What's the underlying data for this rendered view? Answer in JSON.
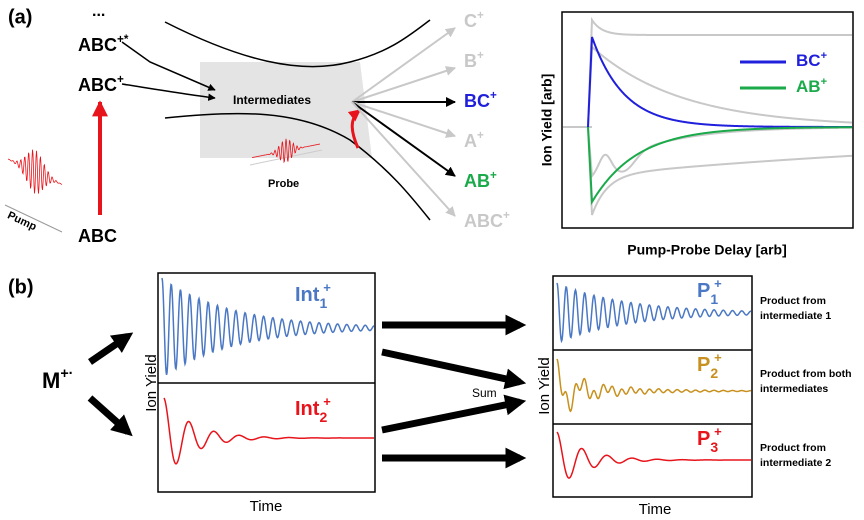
{
  "panel_a": {
    "label": "(a)",
    "ellipsis": "...",
    "excited": {
      "text": "ABC",
      "charge": "+*"
    },
    "ion": {
      "text": "ABC",
      "charge": "+"
    },
    "neutral": "ABC",
    "pump": "Pump",
    "intermediates": "Intermediates",
    "probe": "Probe",
    "products": [
      {
        "text": "C",
        "charge": "+"
      },
      {
        "text": "B",
        "charge": "+"
      },
      {
        "text": "BC",
        "charge": "+"
      },
      {
        "text": "A",
        "charge": "+"
      },
      {
        "text": "AB",
        "charge": "+"
      },
      {
        "text": "ABC",
        "charge": "+"
      }
    ],
    "plot": {
      "y_label": "Ion Yield [arb]",
      "x_label": "Pump-Probe Delay [arb]",
      "legend": [
        {
          "text": "BC",
          "charge": "+"
        },
        {
          "text": "AB",
          "charge": "+"
        }
      ]
    }
  },
  "panel_b": {
    "label": "(b)",
    "parent": {
      "text": "M",
      "charge": "+·"
    },
    "intermediates": [
      {
        "text": "Int",
        "sub": "1",
        "charge": "+"
      },
      {
        "text": "Int",
        "sub": "2",
        "charge": "+"
      }
    ],
    "y_label_left": "Ion Yield",
    "x_label_left": "Time",
    "sum": "Sum",
    "y_label_right": "Ion Yield",
    "x_label_right": "Time",
    "products": [
      {
        "text": "P",
        "sub": "1",
        "charge": "+",
        "note": [
          "Product from",
          "intermediate 1"
        ]
      },
      {
        "text": "P",
        "sub": "2",
        "charge": "+",
        "note": [
          "Product from both",
          "intermediates"
        ]
      },
      {
        "text": "P",
        "sub": "3",
        "charge": "+",
        "note": [
          "Product from",
          "intermediate 2"
        ]
      }
    ]
  }
}
